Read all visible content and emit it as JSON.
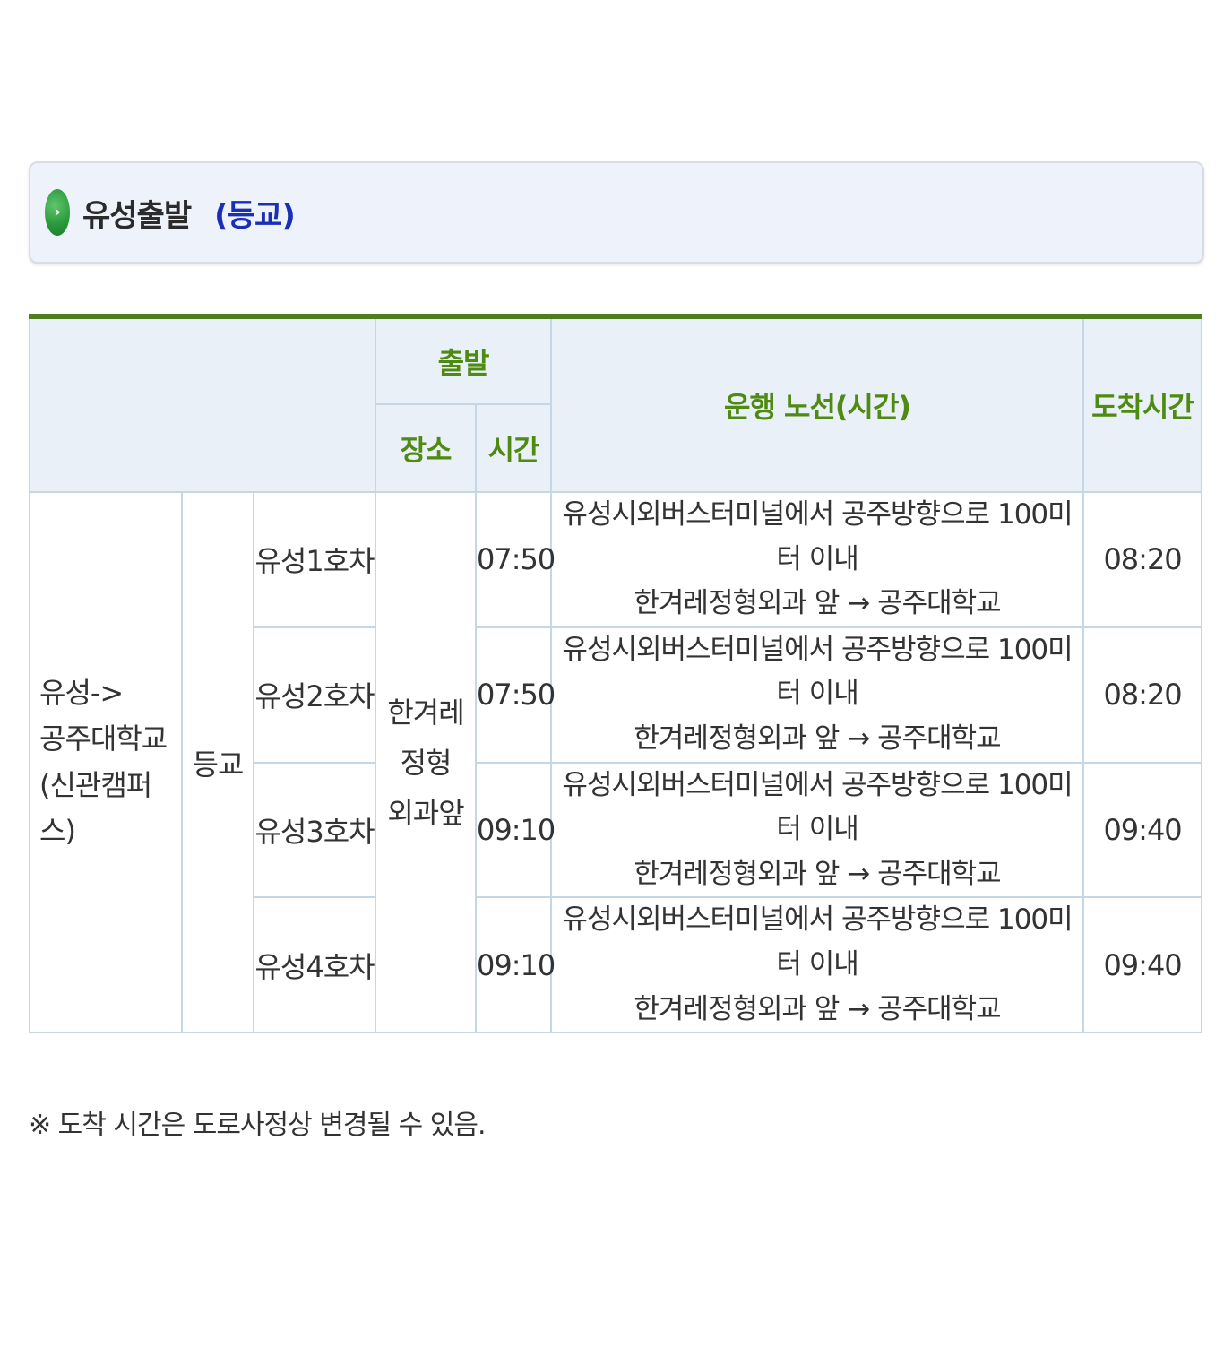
{
  "section": {
    "title": "유성출발",
    "subtitle": "(등교)",
    "icon": "chevron-right-circle-icon"
  },
  "table": {
    "header": {
      "departure": "출발",
      "place": "장소",
      "time": "시간",
      "route": "운행 노선(시간)",
      "arrival": "도착시간"
    },
    "route_name_lines": [
      "유성->",
      "공주대학교",
      "(신관캠퍼스)"
    ],
    "category": "등교",
    "place_lines": [
      "한겨레",
      "정형",
      "외과앞"
    ],
    "rows": [
      {
        "bus": "유성1호차",
        "time": "07:50",
        "route_line1": "유성시외버스터미널에서 공주방향으로 100미터 이내",
        "route_line2": "한겨레정형외과 앞 → 공주대학교",
        "arrival": "08:20"
      },
      {
        "bus": "유성2호차",
        "time": "07:50",
        "route_line1": "유성시외버스터미널에서 공주방향으로 100미터 이내",
        "route_line2": "한겨레정형외과 앞 → 공주대학교",
        "arrival": "08:20"
      },
      {
        "bus": "유성3호차",
        "time": "09:10",
        "route_line1": "유성시외버스터미널에서 공주방향으로 100미터 이내",
        "route_line2": "한겨레정형외과 앞 → 공주대학교",
        "arrival": "09:40"
      },
      {
        "bus": "유성4호차",
        "time": "09:10",
        "route_line1": "유성시외버스터미널에서 공주방향으로 100미터 이내",
        "route_line2": "한겨레정형외과 앞 → 공주대학교",
        "arrival": "09:40"
      }
    ]
  },
  "note": "※ 도착 시간은 도로사정상 변경될 수 있음.",
  "colors": {
    "header_text": "#4f8a12",
    "table_top_border": "#4e7f1f",
    "subtitle": "#1a2fb5",
    "header_bg": "#eaf0f8",
    "cell_border": "#c5d6e6"
  }
}
